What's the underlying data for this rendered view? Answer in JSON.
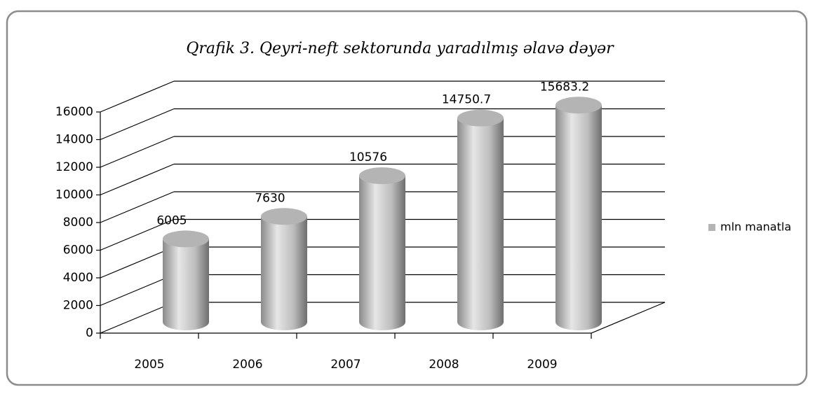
{
  "chart_data": {
    "type": "bar3d",
    "title": "Qrafik 3. Qeyri-neft sektorunda yaradılmış əlavə dəyər",
    "categories": [
      "2005",
      "2006",
      "2007",
      "2008",
      "2009"
    ],
    "series": [
      {
        "name": "mln manatla",
        "color": "#b4b4b4",
        "values": [
          6005,
          7630,
          10576,
          14750.7,
          15683.2
        ]
      }
    ],
    "ylim": [
      0,
      16000
    ],
    "yticks": [
      0,
      2000,
      4000,
      6000,
      8000,
      10000,
      12000,
      14000,
      16000
    ],
    "grid": true,
    "legend": "right"
  }
}
